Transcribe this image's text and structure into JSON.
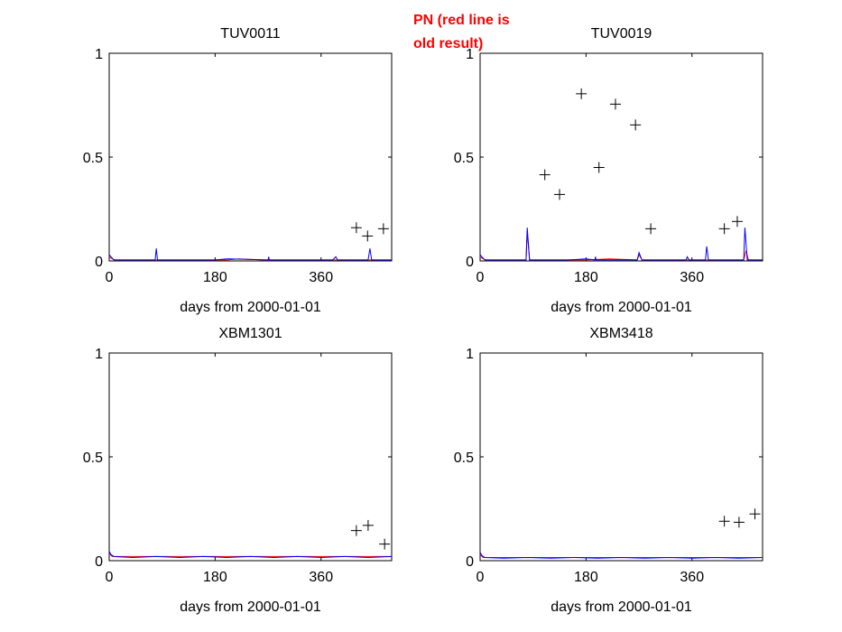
{
  "annotation": {
    "line1": "PN (red line is",
    "line2": "old result)"
  },
  "colors": {
    "new_series": "#0000ff",
    "old_series": "#ff0000",
    "markers": "#000000",
    "annotation": "#ff0000"
  },
  "chart_data": [
    {
      "type": "line",
      "title": "TUV0011",
      "xlabel": "days from 2000-01-01",
      "ylabel": "",
      "xlim": [
        0,
        480
      ],
      "ylim": [
        0,
        1
      ],
      "xticks": [
        0,
        180,
        360
      ],
      "yticks": [
        0,
        0.5,
        1
      ],
      "grid": false,
      "series": [
        {
          "type": "line",
          "color": "#ff0000",
          "x": [
            0,
            5,
            10,
            60,
            120,
            200,
            220,
            260,
            300,
            350,
            400,
            480
          ],
          "y": [
            0.02,
            0.01,
            0.005,
            0.005,
            0.005,
            0.005,
            0.01,
            0.005,
            0.005,
            0.005,
            0.005,
            0.005
          ]
        },
        {
          "type": "line",
          "color": "#0000ff",
          "x": [
            0,
            3,
            8,
            50,
            78,
            80,
            82,
            120,
            180,
            200,
            270,
            271,
            272,
            320,
            380,
            385,
            388,
            420,
            440,
            443,
            446,
            470,
            480
          ],
          "y": [
            0.03,
            0.02,
            0.005,
            0.005,
            0.005,
            0.06,
            0.005,
            0.005,
            0.005,
            0.01,
            0.005,
            0.02,
            0.005,
            0.005,
            0.005,
            0.02,
            0.005,
            0.005,
            0.005,
            0.06,
            0.005,
            0.005,
            0.005
          ]
        },
        {
          "type": "scatter",
          "marker": "+",
          "x": [
            420,
            439,
            466
          ],
          "y": [
            0.16,
            0.12,
            0.155
          ]
        }
      ]
    },
    {
      "type": "line",
      "title": "TUV0019",
      "xlabel": "days from 2000-01-01",
      "ylabel": "",
      "xlim": [
        0,
        480
      ],
      "ylim": [
        0,
        1
      ],
      "xticks": [
        0,
        180,
        360
      ],
      "yticks": [
        0,
        0.5,
        1
      ],
      "grid": false,
      "series": [
        {
          "type": "line",
          "color": "#ff0000",
          "x": [
            0,
            5,
            10,
            60,
            78,
            80,
            84,
            180,
            220,
            267,
            270,
            275,
            380,
            448,
            452,
            456,
            480
          ],
          "y": [
            0.02,
            0.01,
            0.005,
            0.005,
            0.005,
            0.14,
            0.005,
            0.005,
            0.01,
            0.005,
            0.03,
            0.005,
            0.005,
            0.005,
            0.05,
            0.005,
            0.005
          ]
        },
        {
          "type": "line",
          "color": "#0000ff",
          "x": [
            0,
            3,
            8,
            60,
            78,
            80,
            84,
            150,
            180,
            195,
            196,
            197,
            267,
            270,
            275,
            350,
            352,
            355,
            383,
            385,
            388,
            440,
            448,
            450,
            454,
            480
          ],
          "y": [
            0.03,
            0.02,
            0.005,
            0.005,
            0.005,
            0.16,
            0.005,
            0.005,
            0.01,
            0.005,
            0.02,
            0.005,
            0.005,
            0.04,
            0.005,
            0.005,
            0.02,
            0.005,
            0.005,
            0.07,
            0.005,
            0.005,
            0.005,
            0.16,
            0.005,
            0.005
          ]
        },
        {
          "type": "scatter",
          "marker": "+",
          "x": [
            110,
            135,
            172,
            202,
            230,
            264,
            290,
            415,
            437
          ],
          "y": [
            0.415,
            0.32,
            0.805,
            0.45,
            0.755,
            0.655,
            0.155,
            0.155,
            0.19
          ]
        }
      ]
    },
    {
      "type": "line",
      "title": "XBM1301",
      "xlabel": "days from 2000-01-01",
      "ylabel": "",
      "xlim": [
        0,
        480
      ],
      "ylim": [
        0,
        1
      ],
      "xticks": [
        0,
        180,
        360
      ],
      "yticks": [
        0,
        0.5,
        1
      ],
      "grid": false,
      "series": [
        {
          "type": "line",
          "color": "#ff0000",
          "x": [
            0,
            5,
            10,
            100,
            200,
            300,
            400,
            480
          ],
          "y": [
            0.035,
            0.02,
            0.02,
            0.02,
            0.02,
            0.02,
            0.02,
            0.02
          ]
        },
        {
          "type": "line",
          "color": "#0000ff",
          "x": [
            0,
            3,
            8,
            40,
            80,
            120,
            160,
            200,
            240,
            280,
            320,
            360,
            400,
            440,
            480
          ],
          "y": [
            0.045,
            0.03,
            0.02,
            0.015,
            0.02,
            0.015,
            0.02,
            0.015,
            0.02,
            0.015,
            0.02,
            0.015,
            0.02,
            0.015,
            0.02
          ]
        },
        {
          "type": "scatter",
          "marker": "+",
          "x": [
            420,
            440,
            468
          ],
          "y": [
            0.145,
            0.17,
            0.08
          ]
        }
      ]
    },
    {
      "type": "line",
      "title": "XBM3418",
      "xlabel": "days from 2000-01-01",
      "ylabel": "",
      "xlim": [
        0,
        480
      ],
      "ylim": [
        0,
        1
      ],
      "xticks": [
        0,
        180,
        360
      ],
      "yticks": [
        0,
        0.5,
        1
      ],
      "grid": false,
      "series": [
        {
          "type": "line",
          "color": "#ff0000",
          "x": [
            0,
            5,
            10,
            100,
            200,
            300,
            400,
            480
          ],
          "y": [
            0.03,
            0.015,
            0.015,
            0.015,
            0.015,
            0.015,
            0.015,
            0.015
          ]
        },
        {
          "type": "line",
          "color": "#0000ff",
          "x": [
            0,
            3,
            8,
            40,
            80,
            120,
            160,
            200,
            240,
            280,
            320,
            360,
            400,
            440,
            480
          ],
          "y": [
            0.04,
            0.025,
            0.015,
            0.012,
            0.015,
            0.012,
            0.015,
            0.012,
            0.015,
            0.012,
            0.015,
            0.012,
            0.015,
            0.012,
            0.015
          ]
        },
        {
          "type": "scatter",
          "marker": "+",
          "x": [
            415,
            440,
            467
          ],
          "y": [
            0.19,
            0.185,
            0.225
          ]
        }
      ]
    }
  ]
}
